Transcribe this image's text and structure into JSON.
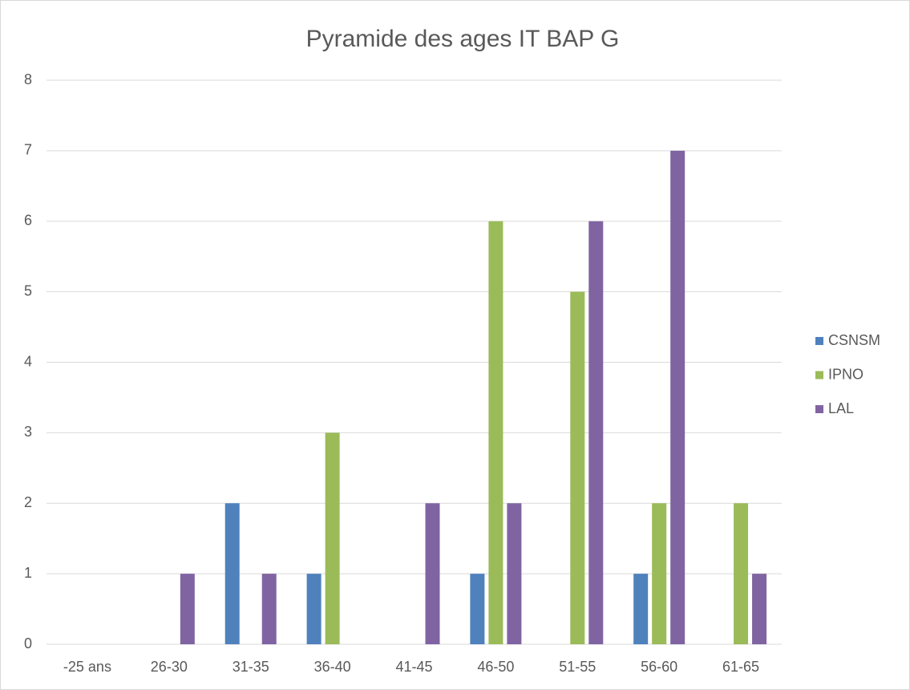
{
  "chart_data": {
    "type": "bar",
    "title": "Pyramide des ages IT BAP G",
    "categories": [
      "-25 ans",
      "26-30",
      "31-35",
      "36-40",
      "41-45",
      "46-50",
      "51-55",
      "56-60",
      "61-65"
    ],
    "series": [
      {
        "name": "CSNSM",
        "color": "#4f81bd",
        "values": [
          0,
          0,
          2,
          1,
          0,
          1,
          0,
          1,
          0
        ]
      },
      {
        "name": "IPNO",
        "color": "#9bbb59",
        "values": [
          0,
          0,
          0,
          3,
          0,
          6,
          5,
          2,
          2
        ]
      },
      {
        "name": "LAL",
        "color": "#8064a2",
        "values": [
          0,
          1,
          1,
          0,
          2,
          2,
          6,
          7,
          1
        ]
      }
    ],
    "ylim": [
      0,
      8
    ],
    "yticks": [
      0,
      1,
      2,
      3,
      4,
      5,
      6,
      7,
      8
    ],
    "grid": true,
    "legend": "right"
  }
}
